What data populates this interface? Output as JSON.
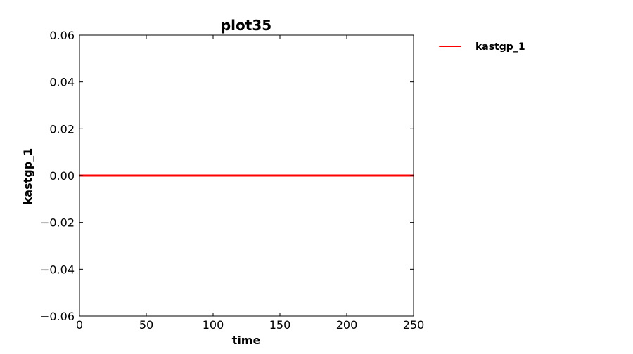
{
  "chart_data": {
    "type": "line",
    "title": "plot35",
    "xlabel": "time",
    "ylabel": "kastgp_1",
    "xlim": [
      0,
      250
    ],
    "ylim": [
      -0.06,
      0.06
    ],
    "x_ticks": [
      0,
      50,
      100,
      150,
      200,
      250
    ],
    "x_tick_labels": [
      "0",
      "50",
      "100",
      "150",
      "200",
      "250"
    ],
    "y_ticks": [
      0.06,
      0.04,
      0.02,
      0.0,
      -0.02,
      -0.04,
      -0.06
    ],
    "y_tick_labels": [
      "0.06",
      "0.04",
      "0.02",
      "0.00",
      "−0.02",
      "−0.04",
      "−0.06"
    ],
    "grid": false,
    "legend_position": "outside-right-top",
    "series": [
      {
        "name": "kastgp_1",
        "color": "#ff0000",
        "x": [
          0,
          250
        ],
        "y": [
          0,
          0
        ]
      }
    ]
  }
}
